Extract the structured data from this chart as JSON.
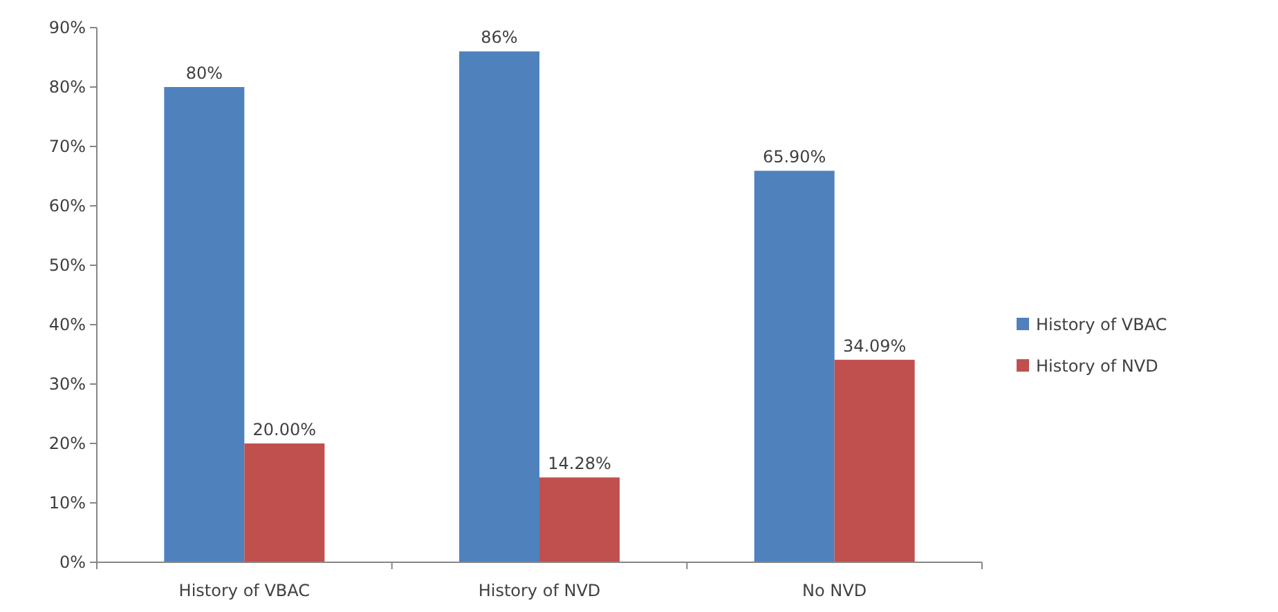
{
  "chart_data": {
    "type": "bar",
    "categories": [
      "History of VBAC",
      "History of NVD",
      "No NVD"
    ],
    "series": [
      {
        "name": "History of VBAC",
        "color": "#4f81bd",
        "values": [
          80,
          86,
          65.9
        ],
        "value_labels": [
          "80%",
          "86%",
          "65.90%"
        ]
      },
      {
        "name": "History of NVD",
        "color": "#c0504d",
        "values": [
          20.0,
          14.28,
          34.09
        ],
        "value_labels": [
          "20.00%",
          "14.28%",
          "34.09%"
        ]
      }
    ],
    "ylim": [
      0,
      90
    ],
    "yticks": [
      {
        "value": 0,
        "label": "0%"
      },
      {
        "value": 10,
        "label": "10%"
      },
      {
        "value": 20,
        "label": "20%"
      },
      {
        "value": 30,
        "label": "30%"
      },
      {
        "value": 40,
        "label": "40%"
      },
      {
        "value": 50,
        "label": "50%"
      },
      {
        "value": 60,
        "label": "60%"
      },
      {
        "value": 70,
        "label": "70%"
      },
      {
        "value": 80,
        "label": "80%"
      },
      {
        "value": 90,
        "label": "90%"
      }
    ],
    "grid": false,
    "legend": "right"
  }
}
